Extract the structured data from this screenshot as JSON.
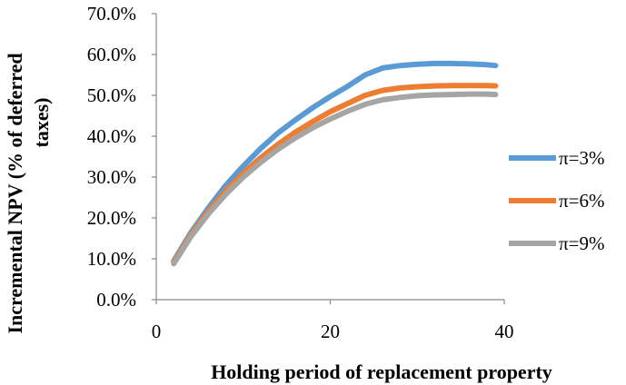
{
  "chart_data": {
    "type": "line",
    "title": "",
    "xlabel": "Holding period of replacement property",
    "ylabel_lines": [
      "Incremental NPV (% of deferred",
      "taxes)"
    ],
    "xlim": [
      0,
      40
    ],
    "ylim": [
      0,
      0.7
    ],
    "x_ticks": [
      0,
      20,
      40
    ],
    "x_tick_labels": [
      "0",
      "20",
      "40"
    ],
    "y_ticks": [
      0,
      0.1,
      0.2,
      0.3,
      0.4,
      0.5,
      0.6,
      0.7
    ],
    "y_tick_labels": [
      "0.0%",
      "10.0%",
      "20.0%",
      "30.0%",
      "40.0%",
      "50.0%",
      "60.0%",
      "70.0%"
    ],
    "grid": false,
    "legend_position": "right",
    "series": [
      {
        "name": "π=3%",
        "color": "#5b9bd5",
        "x": [
          2,
          4,
          6,
          8,
          10,
          12,
          14,
          16,
          18,
          20,
          22,
          24,
          26,
          28,
          30,
          32,
          34,
          36,
          38,
          39
        ],
        "y": [
          0.095,
          0.165,
          0.225,
          0.28,
          0.327,
          0.37,
          0.408,
          0.44,
          0.47,
          0.497,
          0.522,
          0.55,
          0.567,
          0.573,
          0.576,
          0.578,
          0.578,
          0.577,
          0.575,
          0.573
        ]
      },
      {
        "name": "π=6%",
        "color": "#ed7d31",
        "x": [
          2,
          4,
          6,
          8,
          10,
          12,
          14,
          16,
          18,
          20,
          22,
          24,
          26,
          28,
          30,
          32,
          34,
          36,
          38,
          39
        ],
        "y": [
          0.092,
          0.16,
          0.217,
          0.267,
          0.31,
          0.347,
          0.38,
          0.41,
          0.436,
          0.46,
          0.48,
          0.5,
          0.512,
          0.518,
          0.521,
          0.523,
          0.524,
          0.524,
          0.524,
          0.523
        ]
      },
      {
        "name": "π=9%",
        "color": "#a5a5a5",
        "x": [
          2,
          4,
          6,
          8,
          10,
          12,
          14,
          16,
          18,
          20,
          22,
          24,
          26,
          28,
          30,
          32,
          34,
          36,
          38,
          39
        ],
        "y": [
          0.088,
          0.155,
          0.21,
          0.258,
          0.3,
          0.336,
          0.368,
          0.396,
          0.421,
          0.442,
          0.461,
          0.478,
          0.489,
          0.495,
          0.499,
          0.501,
          0.502,
          0.503,
          0.503,
          0.502
        ]
      }
    ]
  }
}
